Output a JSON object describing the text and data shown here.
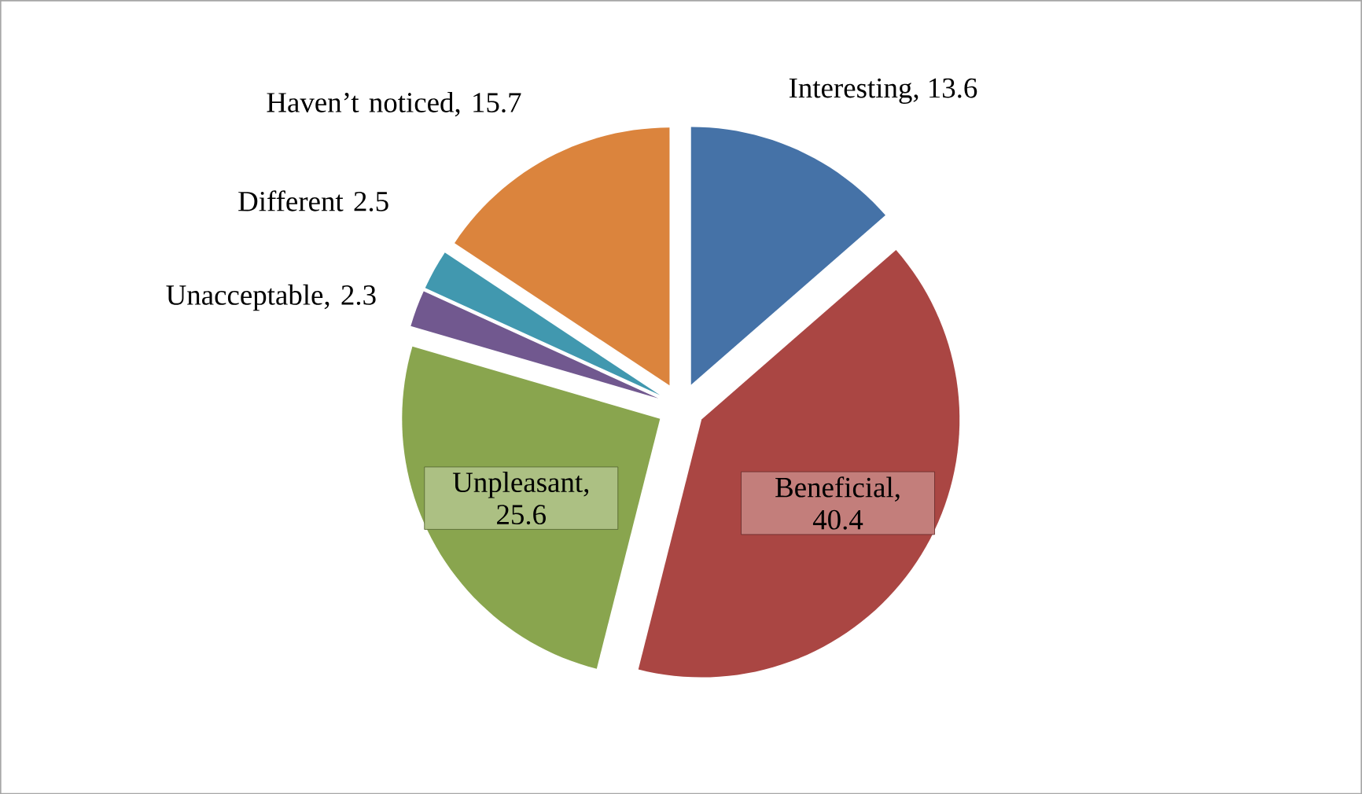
{
  "chart_data": {
    "type": "pie",
    "categories": [
      "Interesting",
      "Beneficial",
      "Unpleasant",
      "Unacceptable",
      "Different",
      "Haven’t noticed"
    ],
    "values": [
      13.6,
      40.4,
      25.6,
      2.3,
      2.5,
      15.7
    ],
    "colors": [
      "#4572a7",
      "#aa4643",
      "#89a54e",
      "#71588f",
      "#4198af",
      "#db843d"
    ],
    "value_labels": [
      ", 13.6",
      ", 40.4",
      ", 25.6",
      ", 2.3",
      "2.5",
      ", 15.7"
    ]
  }
}
